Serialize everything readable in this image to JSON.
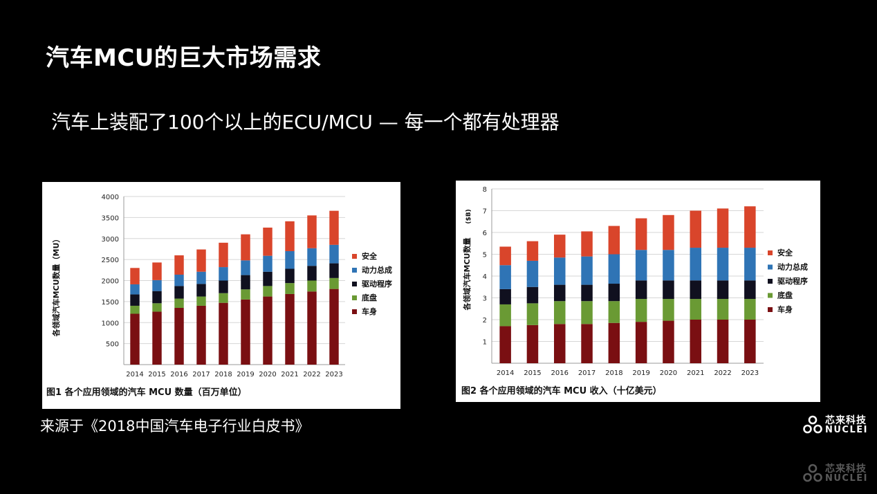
{
  "slide": {
    "title": "汽车MCU的巨大市场需求",
    "subtitle": "汽车上装配了100个以上的ECU/MCU — 每一个都有处理器",
    "source": "来源于《2018中国汽车电子行业白皮书》"
  },
  "logo": {
    "cn": "芯来科技",
    "en": "NUCLEI"
  },
  "colors": {
    "background": "#000000",
    "text": "#ffffff",
    "safety": "#d9452b",
    "powertrain": "#2f74b5",
    "drive": "#10101f",
    "chassis": "#6a9a34",
    "body": "#7a0f12"
  },
  "chart_data": [
    {
      "type": "bar",
      "stacked": true,
      "caption": "图1  各个应用领域的汽车 MCU 数量（百万单位）",
      "ylabel": "各领域汽车MCU数量（MU）",
      "xlabel": "",
      "ylim": [
        0,
        4000
      ],
      "yticks": [
        500,
        1000,
        1500,
        2000,
        2500,
        3000,
        3500,
        4000
      ],
      "categories": [
        "2014",
        "2015",
        "2016",
        "2017",
        "2018",
        "2019",
        "2020",
        "2021",
        "2022",
        "2023"
      ],
      "series": [
        {
          "name": "车身",
          "color": "#7a0f12",
          "values": [
            1210,
            1260,
            1350,
            1400,
            1470,
            1550,
            1620,
            1680,
            1740,
            1800
          ]
        },
        {
          "name": "底盘",
          "color": "#6a9a34",
          "values": [
            190,
            200,
            220,
            220,
            230,
            240,
            250,
            260,
            260,
            260
          ]
        },
        {
          "name": "驱动程序",
          "color": "#10101f",
          "values": [
            270,
            290,
            300,
            300,
            300,
            340,
            340,
            340,
            350,
            350
          ]
        },
        {
          "name": "动力总成",
          "color": "#2f74b5",
          "values": [
            240,
            260,
            270,
            290,
            320,
            350,
            380,
            420,
            420,
            440
          ]
        },
        {
          "name": "安全",
          "color": "#d9452b",
          "values": [
            390,
            420,
            460,
            530,
            580,
            620,
            670,
            710,
            780,
            810
          ]
        }
      ]
    },
    {
      "type": "bar",
      "stacked": true,
      "caption": "图2  各个应用领域的汽车 MCU 收入（十亿美元）",
      "ylabel": "各领域汽车MCU数量",
      "yunit": "($B)",
      "xlabel": "",
      "ylim": [
        0,
        8
      ],
      "yticks": [
        1,
        2,
        3,
        4,
        5,
        6,
        7,
        8
      ],
      "categories": [
        "2014",
        "2015",
        "2016",
        "2017",
        "2018",
        "2019",
        "2020",
        "2021",
        "2022",
        "2023"
      ],
      "series": [
        {
          "name": "车身",
          "color": "#7a0f12",
          "values": [
            1.7,
            1.75,
            1.8,
            1.8,
            1.85,
            1.9,
            1.95,
            2.0,
            2.0,
            2.0
          ]
        },
        {
          "name": "底盘",
          "color": "#6a9a34",
          "values": [
            1.0,
            1.0,
            1.05,
            1.05,
            1.0,
            1.05,
            1.0,
            0.95,
            0.95,
            0.95
          ]
        },
        {
          "name": "驱动程序",
          "color": "#10101f",
          "values": [
            0.7,
            0.75,
            0.75,
            0.75,
            0.8,
            0.85,
            0.85,
            0.85,
            0.85,
            0.85
          ]
        },
        {
          "name": "动力总成",
          "color": "#2f74b5",
          "values": [
            1.1,
            1.2,
            1.25,
            1.3,
            1.35,
            1.4,
            1.4,
            1.5,
            1.5,
            1.5
          ]
        },
        {
          "name": "安全",
          "color": "#d9452b",
          "values": [
            0.85,
            0.9,
            1.05,
            1.15,
            1.3,
            1.45,
            1.6,
            1.7,
            1.8,
            1.9
          ]
        }
      ]
    }
  ]
}
